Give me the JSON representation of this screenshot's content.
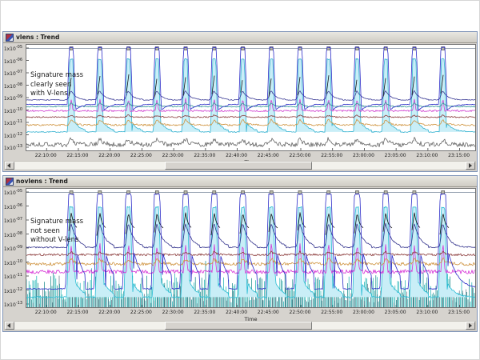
{
  "icons": {
    "window_icon": "trend-chart-glyph",
    "scroll_left": "left-triangle",
    "scroll_right": "right-triangle",
    "event_marker": "small-gray-square"
  },
  "windows": [
    {
      "scrollbar": {
        "thumb_start": 0.335,
        "thumb_end": 0.655
      }
    },
    {
      "scrollbar": {
        "thumb_start": 0.335,
        "thumb_end": 0.655
      }
    }
  ],
  "chart_data": [
    {
      "type": "line",
      "title": "vlens : Trend",
      "xlabel": "Time",
      "annotation": [
        "Signature mass",
        "clearly seen",
        "with V-lens"
      ],
      "x_ticks": [
        "22:10:00",
        "22:15:00",
        "22:20:00",
        "22:25:00",
        "22:30:00",
        "22:35:00",
        "22:40:00",
        "22:45:00",
        "22:50:00",
        "22:55:00",
        "23:00:00",
        "23:05:00",
        "23:10:00",
        "23:15:00"
      ],
      "x_tick_first": 0.045,
      "x_tick_step": 0.0708,
      "y_tick_base": "1x10",
      "y_tick_exponents": [
        "-05",
        "-06",
        "-07",
        "-08",
        "-09",
        "-10",
        "-11",
        "-12",
        "-13"
      ],
      "y_scale": "log",
      "grid": false,
      "legend": "none",
      "event_markers_top": true,
      "peaks": {
        "first": 0.1,
        "step": 0.0637,
        "count": 14
      },
      "series": [
        {
          "name": "mass-cyan-column",
          "color": "#35b2d0",
          "fill": "#c9eef7",
          "shape": "column",
          "base": 0.175,
          "top": 0.865,
          "w": 0.0035,
          "w2": 0.008,
          "tail_amp": 0.09,
          "tail_tau": 0.014,
          "noise": 0.005
        },
        {
          "name": "mass-gray-noise",
          "color": "#666666",
          "shape": "bump",
          "base": 0.055,
          "h": 0.05,
          "rw": 0.004,
          "tau": 0.008,
          "noise": 0.022
        },
        {
          "name": "mass-orange",
          "color": "#cf9440",
          "shape": "bump",
          "base": 0.24,
          "h": 0.05,
          "rw": 0.003,
          "tau": 0.008,
          "noise": 0.008
        },
        {
          "name": "mass-maroon",
          "color": "#8c3c3c",
          "shape": "bump",
          "base": 0.315,
          "h": 0.018,
          "rw": 0.003,
          "tau": 0.006,
          "noise": 0.006
        },
        {
          "name": "mass-magenta",
          "color": "#cf3ecf",
          "shape": "spike",
          "base": 0.375,
          "h": 0.115,
          "w": 0.004,
          "noise": 0.008
        },
        {
          "name": "mass-teal",
          "color": "#2f9494",
          "shape": "bump",
          "base": 0.415,
          "h": 0.035,
          "rw": 0.003,
          "tau": 0.007,
          "noise": 0.005
        },
        {
          "name": "mass-navy",
          "color": "#3c3c96",
          "shape": "bump",
          "base": 0.478,
          "h": 0.085,
          "rw": 0.004,
          "tau": 0.011,
          "noise": 0.004
        },
        {
          "name": "signature-mass-tick",
          "color": "#141414",
          "shape": "tick",
          "lo": 0.5,
          "hi": 0.695,
          "tw": 0.006
        },
        {
          "name": "total-pressure-blue",
          "color": "#2c2cc8",
          "shape": "column",
          "base": 0.435,
          "top": 0.975,
          "w": 0.0045,
          "w2": 0.009,
          "tail_amp": -0.055,
          "tail_tau": 0.012,
          "noise": 0.003
        }
      ]
    },
    {
      "type": "line",
      "title": "novlens : Trend",
      "xlabel": "Time",
      "annotation": [
        "Signature mass",
        "not seen",
        "without V-lens"
      ],
      "x_ticks": [
        "22:10:00",
        "22:15:00",
        "22:20:00",
        "22:25:00",
        "22:30:00",
        "22:35:00",
        "22:40:00",
        "22:45:00",
        "22:50:00",
        "22:55:00",
        "23:00:00",
        "23:05:00",
        "23:10:00",
        "23:15:00"
      ],
      "x_tick_first": 0.045,
      "x_tick_step": 0.0708,
      "y_tick_base": "1x10",
      "y_tick_exponents": [
        "-05",
        "-06",
        "-07",
        "-08",
        "-09",
        "-10",
        "-11",
        "-12",
        "-13"
      ],
      "y_scale": "log",
      "grid": false,
      "legend": "none",
      "event_markers_top": true,
      "peaks": {
        "first": 0.1,
        "step": 0.0637,
        "count": 14
      },
      "series": [
        {
          "name": "noise-band-teal",
          "color": "#14b0b0",
          "color2": "#0c8484",
          "shape": "noiseband",
          "hmin": 0.04,
          "hmax": 0.27,
          "burst": 0.1,
          "spacing": 1.6
        },
        {
          "name": "noise-band-gray",
          "color": "#5e6e80",
          "shape": "noiseband",
          "hmin": 0.02,
          "hmax": 0.17,
          "burst": 0.05,
          "spacing": 4.1
        },
        {
          "name": "mass-cyan-column",
          "color": "#28bcd4",
          "fill": "#c9eef7",
          "shape": "column",
          "base": 0.085,
          "top": 0.845,
          "w": 0.004,
          "w2": 0.01,
          "tail_amp": 0.12,
          "tail_tau": 0.016,
          "noise": 0.006
        },
        {
          "name": "mass-magenta",
          "color": "#d633d6",
          "shape": "spike",
          "base": 0.3,
          "h": 0.24,
          "w": 0.005,
          "noise": 0.017
        },
        {
          "name": "mass-orange",
          "color": "#cf9440",
          "shape": "bump",
          "base": 0.365,
          "h": 0.045,
          "rw": 0.003,
          "tau": 0.008,
          "noise": 0.013
        },
        {
          "name": "mass-maroon",
          "color": "#8c3c3c",
          "shape": "bump",
          "base": 0.443,
          "h": 0.025,
          "rw": 0.003,
          "tau": 0.006,
          "noise": 0.009
        },
        {
          "name": "mass-navy",
          "color": "#32328c",
          "shape": "bump",
          "base": 0.505,
          "h": 0.2,
          "rw": 0.0035,
          "tau": 0.013,
          "noise": 0.005
        },
        {
          "name": "signature-mass-peak",
          "color": "#141414",
          "shape": "peakseg",
          "lo": 0.6,
          "hi": 0.8,
          "lo2": 0.655,
          "rw": 0.007,
          "tau": 0.006,
          "visw": 0.014
        },
        {
          "name": "total-pressure-blue",
          "color": "#2c2cc8",
          "shape": "column",
          "base": 0.155,
          "top": 0.955,
          "w": 0.006,
          "w2": 0.013,
          "tail_amp": 0.3,
          "tail_tau": 0.02,
          "noise": 0.004
        }
      ]
    }
  ]
}
